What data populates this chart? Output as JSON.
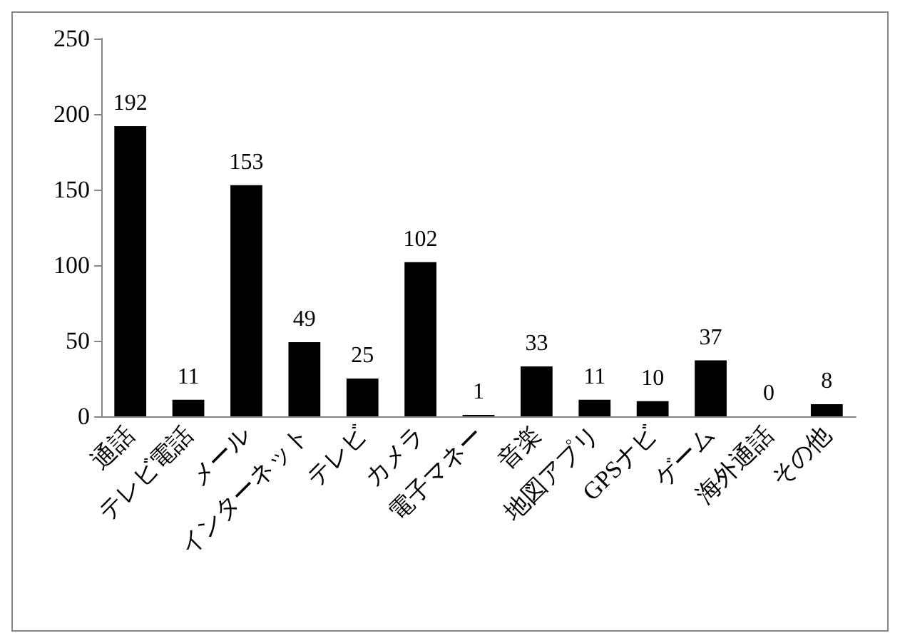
{
  "chart_data": {
    "type": "bar",
    "categories": [
      "通話",
      "テレビ電話",
      "メール",
      "インターネット",
      "テレビ",
      "カメラ",
      "電子マネー",
      "音楽",
      "地図アプリ",
      "GPSナビ",
      "ゲーム",
      "海外通話",
      "その他"
    ],
    "values": [
      192,
      11,
      153,
      49,
      25,
      102,
      1,
      33,
      11,
      10,
      37,
      0,
      8
    ],
    "color": "#000000",
    "ylim": [
      0,
      250
    ],
    "yticks": [
      0,
      50,
      100,
      150,
      200,
      250
    ],
    "data_labels": true,
    "grid": false
  }
}
